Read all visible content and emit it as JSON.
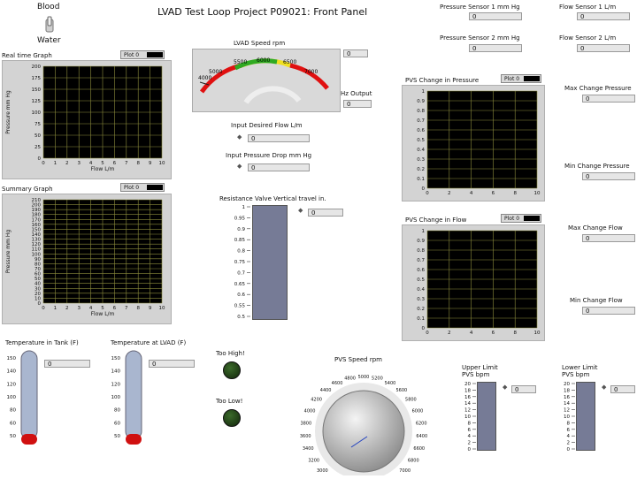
{
  "header": {
    "title": "LVAD Test Loop Project P09021: Front Panel"
  },
  "fluid_switch": {
    "top_label": "Blood",
    "bottom_label": "Water"
  },
  "sensors": {
    "pressure1": {
      "label": "Pressure Sensor 1 mm Hg",
      "value": "0"
    },
    "pressure2": {
      "label": "Pressure Sensor 2 mm Hg",
      "value": "0"
    },
    "flow1": {
      "label": "Flow Sensor 1 L/m",
      "value": "0"
    },
    "flow2": {
      "label": "Flow Sensor 2 L/m",
      "value": "0"
    }
  },
  "realtime_graph": {
    "title": "Real time Graph",
    "legend": "Plot 0",
    "ylabel": "Pressure mm Hg",
    "xlabel": "Flow L/m",
    "yticks": [
      "200",
      "175",
      "150",
      "125",
      "100",
      "75",
      "50",
      "25",
      "0"
    ],
    "xticks": [
      "0",
      "1",
      "2",
      "3",
      "4",
      "5",
      "6",
      "7",
      "8",
      "9",
      "10"
    ]
  },
  "summary_graph": {
    "title": "Summary Graph",
    "legend": "Plot 0",
    "ylabel": "Pressure mm Hg",
    "xlabel": "Flow L/m",
    "yticks": [
      "210",
      "200",
      "190",
      "180",
      "170",
      "160",
      "150",
      "140",
      "130",
      "120",
      "110",
      "100",
      "90",
      "80",
      "70",
      "60",
      "50",
      "40",
      "30",
      "20",
      "10",
      "0"
    ],
    "xticks": [
      "0",
      "1",
      "2",
      "3",
      "4",
      "5",
      "6",
      "7",
      "8",
      "9",
      "10"
    ]
  },
  "lvad_speed": {
    "label": "LVAD Speed rpm",
    "value": "0",
    "ticks": [
      "4000",
      "5000",
      "5500",
      "6000",
      "6500",
      "7000"
    ],
    "ticks_partial": [
      "5000",
      "5500",
      "6000",
      "6500",
      "7000"
    ],
    "gauge_left": "4000",
    "gauge_top_labels": [
      "5000",
      "5500",
      "6000",
      "6500",
      "7000"
    ]
  },
  "hz_output": {
    "label": "Hz Output",
    "value": "0"
  },
  "desired_flow": {
    "label": "Input Desired Flow L/m",
    "value": "0"
  },
  "pressure_drop": {
    "label": "Input Pressure Drop mm Hg",
    "value": "0"
  },
  "resistance_valve": {
    "label": "Resistance Valve Vertical travel in.",
    "value": "0",
    "ticks": [
      "1",
      "0.95",
      "0.9",
      "0.85",
      "0.8",
      "0.75",
      "0.7",
      "0.65",
      "0.6",
      "0.55",
      "0.5"
    ]
  },
  "pvs_pressure_graph": {
    "title": "PVS Change in Pressure",
    "legend": "Plot 0",
    "yticks": [
      "1",
      "0.9",
      "0.8",
      "0.7",
      "0.6",
      "0.5",
      "0.4",
      "0.3",
      "0.2",
      "0.1",
      "0"
    ],
    "xticks": [
      "0",
      "2",
      "4",
      "6",
      "8",
      "10"
    ]
  },
  "pvs_flow_graph": {
    "title": "PVS Change in Flow",
    "legend": "Plot 0",
    "yticks": [
      "1",
      "0.9",
      "0.8",
      "0.7",
      "0.6",
      "0.5",
      "0.4",
      "0.3",
      "0.2",
      "0.1",
      "0"
    ],
    "xticks": [
      "0",
      "2",
      "4",
      "6",
      "8",
      "10"
    ]
  },
  "change_indicators": {
    "max_pressure": {
      "label": "Max Change Pressure",
      "value": "0"
    },
    "min_pressure": {
      "label": "Min Change Pressure",
      "value": "0"
    },
    "max_flow": {
      "label": "Max Change Flow",
      "value": "0"
    },
    "min_flow": {
      "label": "Min Change Flow",
      "value": "0"
    }
  },
  "temp_tank": {
    "label": "Temperature in Tank (F)",
    "value": "0",
    "ticks": [
      "150",
      "140",
      "120",
      "100",
      "80",
      "60",
      "50"
    ]
  },
  "temp_lvad": {
    "label": "Temperature at LVAD (F)",
    "value": "0",
    "ticks": [
      "150",
      "140",
      "120",
      "100",
      "80",
      "60",
      "50"
    ]
  },
  "leds": {
    "too_high": "Too High!",
    "too_low": "Too Low!"
  },
  "pvs_speed": {
    "label": "PVS Speed rpm",
    "ticks": [
      "3000",
      "3200",
      "3400",
      "3600",
      "3800",
      "4000",
      "4200",
      "4400",
      "4600",
      "4800",
      "5000",
      "5200",
      "5400",
      "5600",
      "5800",
      "6000",
      "6200",
      "6400",
      "6600",
      "6800",
      "7000"
    ]
  },
  "upper_limit": {
    "label_line1": "Upper Limit",
    "label_line2": "PVS bpm",
    "value": "0",
    "ticks": [
      "20",
      "18",
      "16",
      "14",
      "12",
      "10",
      "8",
      "6",
      "4",
      "2",
      "0"
    ]
  },
  "lower_limit": {
    "label_line1": "Lower Limit",
    "label_line2": "PVS bpm",
    "value": "0",
    "ticks": [
      "20",
      "18",
      "16",
      "14",
      "12",
      "10",
      "8",
      "6",
      "4",
      "2",
      "0"
    ]
  }
}
